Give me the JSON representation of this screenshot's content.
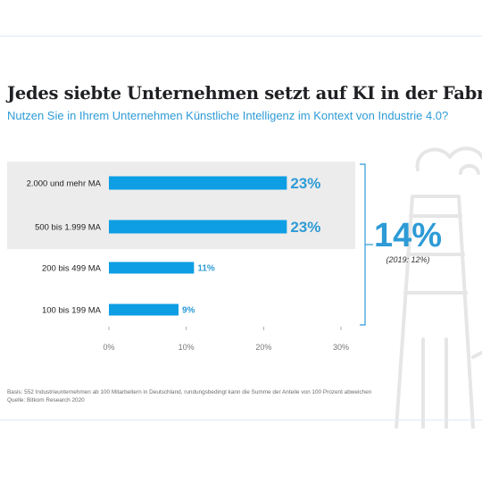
{
  "title": "Jedes siebte Unternehmen setzt auf KI in der Fabrik",
  "subtitle": "Nutzen Sie in Ihrem Unternehmen Künstliche Intelligenz im Kontext von Industrie 4.0?",
  "summary": {
    "value": "14%",
    "note": "(2019: 12%)"
  },
  "footnote": {
    "basis": "Basis: 552 Industrieunternehmen ab 100 Mitarbeitern in Deutschland, rundungsbedingt kann die Summe der Anteile von 100 Prozent abweichen",
    "source": "Quelle: Bitkom Research 2020"
  },
  "colors": {
    "bar": "#0d9ee3",
    "accent": "#2e9bd6",
    "highlight": "#ececec",
    "decoration": "#e8e8e8"
  },
  "decoration_icon": "factory-icon",
  "chart_data": {
    "type": "bar",
    "orientation": "horizontal",
    "categories": [
      "2.000 und mehr MA",
      "500 bis 1.999 MA",
      "200 bis 499 MA",
      "100 bis 199 MA"
    ],
    "values": [
      23,
      23,
      11,
      9
    ],
    "value_labels": [
      "23%",
      "23%",
      "11%",
      "9%"
    ],
    "highlighted_categories": [
      "2.000 und mehr MA",
      "500 bis 1.999 MA"
    ],
    "xlim": [
      0,
      30
    ],
    "xticks": [
      "0%",
      "10%",
      "20%",
      "30%"
    ],
    "xlabel": "",
    "ylabel": "",
    "grid": false,
    "legend": "none"
  }
}
